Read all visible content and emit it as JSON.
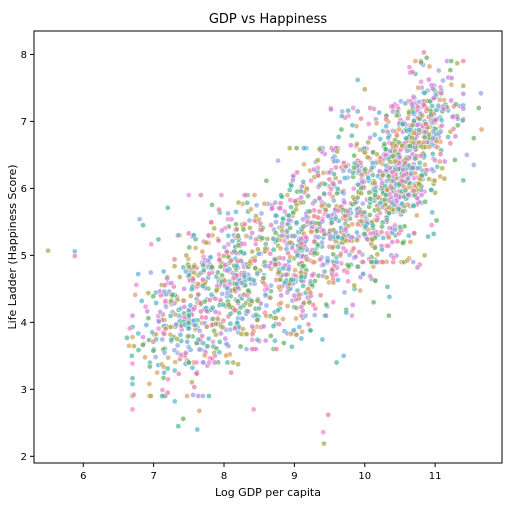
{
  "chart_data": {
    "type": "scatter",
    "title": "GDP vs Happiness",
    "xlabel": "Log GDP per capita",
    "ylabel": "Life Ladder (Happiness Score)",
    "xlim": [
      5.3,
      11.95
    ],
    "ylim": [
      1.9,
      8.35
    ],
    "xticks": [
      6,
      7,
      8,
      9,
      10,
      11
    ],
    "yticks": [
      2,
      3,
      4,
      5,
      6,
      7,
      8
    ],
    "xtick_labels": [
      "6",
      "7",
      "8",
      "9",
      "10",
      "11"
    ],
    "ytick_labels": [
      "2",
      "3",
      "4",
      "5",
      "6",
      "7",
      "8"
    ],
    "grid": false,
    "legend": "none",
    "palette": [
      "#e8769e",
      "#d99b5b",
      "#a5a83e",
      "#5cb05a",
      "#46b49a",
      "#4fb2d1",
      "#8ba2e6",
      "#c67be0",
      "#f07fcf"
    ],
    "point_count": 2100,
    "points": [
      [
        5.5,
        5.07
      ],
      [
        5.88,
        5.06
      ],
      [
        5.88,
        4.99
      ],
      [
        6.62,
        3.77
      ],
      [
        6.65,
        3.65
      ],
      [
        6.69,
        3.5
      ],
      [
        6.66,
        3.91
      ],
      [
        6.7,
        3.78
      ],
      [
        6.72,
        2.92
      ],
      [
        6.7,
        2.7
      ],
      [
        6.8,
        5.54
      ],
      [
        6.85,
        5.45
      ],
      [
        6.78,
        4.72
      ],
      [
        6.83,
        4.32
      ],
      [
        7.2,
        5.71
      ],
      [
        7.35,
        2.45
      ],
      [
        7.42,
        2.56
      ],
      [
        7.62,
        2.4
      ],
      [
        7.65,
        2.68
      ],
      [
        7.2,
        2.95
      ],
      [
        7.05,
        3.25
      ],
      [
        7.3,
        2.82
      ],
      [
        9.48,
        2.62
      ],
      [
        9.41,
        2.36
      ],
      [
        9.42,
        2.19
      ],
      [
        8.42,
        2.7
      ],
      [
        8.1,
        3.25
      ],
      [
        9.6,
        3.4
      ],
      [
        9.7,
        3.5
      ],
      [
        9.9,
        7.62
      ],
      [
        10.0,
        7.48
      ],
      [
        9.9,
        7.15
      ],
      [
        9.52,
        7.18
      ],
      [
        10.84,
        8.03
      ],
      [
        10.88,
        7.95
      ],
      [
        10.92,
        7.82
      ],
      [
        10.8,
        7.88
      ],
      [
        10.72,
        7.9
      ],
      [
        11.65,
        7.42
      ],
      [
        11.62,
        7.2
      ],
      [
        11.66,
        6.88
      ],
      [
        11.55,
        6.75
      ],
      [
        11.55,
        6.35
      ],
      [
        11.45,
        6.5
      ],
      [
        11.4,
        6.12
      ],
      [
        11.1,
        6.3
      ],
      [
        11.08,
        6.85
      ],
      [
        11.02,
        5.52
      ],
      [
        10.98,
        5.32
      ],
      [
        10.9,
        5.28
      ],
      [
        10.95,
        5.45
      ],
      [
        10.85,
        5.0
      ],
      [
        10.78,
        4.86
      ],
      [
        10.75,
        4.82
      ],
      [
        10.35,
        4.38
      ],
      [
        10.15,
        4.62
      ],
      [
        9.85,
        4.55
      ]
    ],
    "clusters": [
      {
        "x": [
          6.8,
          8.1
        ],
        "y": [
          2.9,
          5.3
        ],
        "n": 320
      },
      {
        "x": [
          7.6,
          8.8
        ],
        "y": [
          3.4,
          5.9
        ],
        "n": 330
      },
      {
        "x": [
          8.5,
          9.6
        ],
        "y": [
          3.6,
          6.6
        ],
        "n": 380
      },
      {
        "x": [
          9.2,
          10.3
        ],
        "y": [
          4.1,
          7.2
        ],
        "n": 380
      },
      {
        "x": [
          10.0,
          10.9
        ],
        "y": [
          4.9,
          7.3
        ],
        "n": 400
      },
      {
        "x": [
          10.4,
          11.3
        ],
        "y": [
          5.9,
          7.9
        ],
        "n": 260
      }
    ]
  }
}
